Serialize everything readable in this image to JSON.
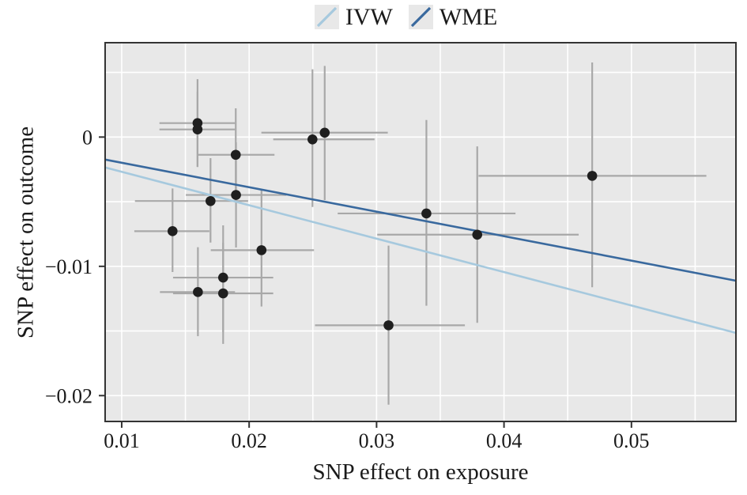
{
  "figure": {
    "legend": [
      {
        "label": "IVW",
        "color": "#a6c9de"
      },
      {
        "label": "WME",
        "color": "#39699e"
      }
    ]
  },
  "chart_data": {
    "type": "scatter",
    "title": "",
    "xlabel": "SNP effect on exposure",
    "ylabel": "SNP effect on outcome",
    "xlim": [
      0.0087,
      0.0582
    ],
    "ylim": [
      -0.022,
      0.0073
    ],
    "x_ticks": [
      0.01,
      0.02,
      0.03,
      0.04,
      0.05
    ],
    "x_tick_labels": [
      "0.01",
      "0.02",
      "0.03",
      "0.04",
      "0.05"
    ],
    "y_ticks": [
      0,
      -0.01,
      -0.02
    ],
    "y_tick_labels": [
      "0",
      "−0.01",
      "−0.02"
    ],
    "grid": {
      "on": true,
      "color": "#ffffff",
      "x_step": 0.005,
      "y_step": 0.005
    },
    "panel_color": "#e8e8e8",
    "spine_color": "#333333",
    "point_color": "#1f1f1f",
    "errorbar_color": "#a8a8a8",
    "legend_position": "top-center",
    "points": [
      {
        "x": 0.01595,
        "y": 0.00108,
        "x_lo": 0.01296,
        "x_hi": 0.01889,
        "y_lo": -0.00231,
        "y_hi": 0.00448
      },
      {
        "x": 0.01595,
        "y": 0.00059,
        "x_lo": 0.01296,
        "x_hi": 0.01889,
        "y_lo": -0.00231,
        "y_hi": 0.0035
      },
      {
        "x": 0.01895,
        "y": -0.00137,
        "x_lo": 0.01595,
        "x_hi": 0.02199,
        "y_lo": -0.005,
        "y_hi": 0.00222
      },
      {
        "x": 0.01897,
        "y": -0.00448,
        "x_lo": 0.01503,
        "x_hi": 0.02292,
        "y_lo": -0.00854,
        "y_hi": -0.00041
      },
      {
        "x": 0.01697,
        "y": -0.00495,
        "x_lo": 0.01104,
        "x_hi": 0.01992,
        "y_lo": -0.00816,
        "y_hi": -0.00163
      },
      {
        "x": 0.01399,
        "y": -0.00728,
        "x_lo": 0.01099,
        "x_hi": 0.01688,
        "y_lo": -0.01044,
        "y_hi": -0.00398
      },
      {
        "x": 0.02097,
        "y": -0.00875,
        "x_lo": 0.01699,
        "x_hi": 0.02509,
        "y_lo": -0.01311,
        "y_hi": -0.00408
      },
      {
        "x": 0.01796,
        "y": -0.01087,
        "x_lo": 0.01403,
        "x_hi": 0.02189,
        "y_lo": -0.01509,
        "y_hi": -0.00683
      },
      {
        "x": 0.01598,
        "y": -0.01199,
        "x_lo": 0.013,
        "x_hi": 0.01889,
        "y_lo": -0.0154,
        "y_hi": -0.00852
      },
      {
        "x": 0.01796,
        "y": -0.01209,
        "x_lo": 0.01403,
        "x_hi": 0.02189,
        "y_lo": -0.016,
        "y_hi": -0.00818
      },
      {
        "x": 0.02497,
        "y": -0.00018,
        "x_lo": 0.02189,
        "x_hi": 0.02984,
        "y_lo": -0.00541,
        "y_hi": 0.00524
      },
      {
        "x": 0.02593,
        "y": 0.00034,
        "x_lo": 0.02096,
        "x_hi": 0.03088,
        "y_lo": -0.00487,
        "y_hi": 0.0055
      },
      {
        "x": 0.03391,
        "y": -0.00591,
        "x_lo": 0.02695,
        "x_hi": 0.0409,
        "y_lo": -0.01305,
        "y_hi": 0.00132
      },
      {
        "x": 0.0379,
        "y": -0.00755,
        "x_lo": 0.03005,
        "x_hi": 0.04586,
        "y_lo": -0.01437,
        "y_hi": -0.00072
      },
      {
        "x": 0.03094,
        "y": -0.01456,
        "x_lo": 0.02517,
        "x_hi": 0.03693,
        "y_lo": -0.0207,
        "y_hi": -0.0084
      },
      {
        "x": 0.04692,
        "y": -0.003,
        "x_lo": 0.038,
        "x_hi": 0.05588,
        "y_lo": -0.01162,
        "y_hi": 0.00577
      }
    ],
    "lines": [
      {
        "name": "IVW",
        "color": "#a6c9de",
        "x": [
          0.0087,
          0.0582
        ],
        "y": [
          -0.00235,
          -0.01515
        ]
      },
      {
        "name": "WME",
        "color": "#39699e",
        "x": [
          0.0087,
          0.0582
        ],
        "y": [
          -0.00174,
          -0.01111
        ]
      }
    ]
  }
}
